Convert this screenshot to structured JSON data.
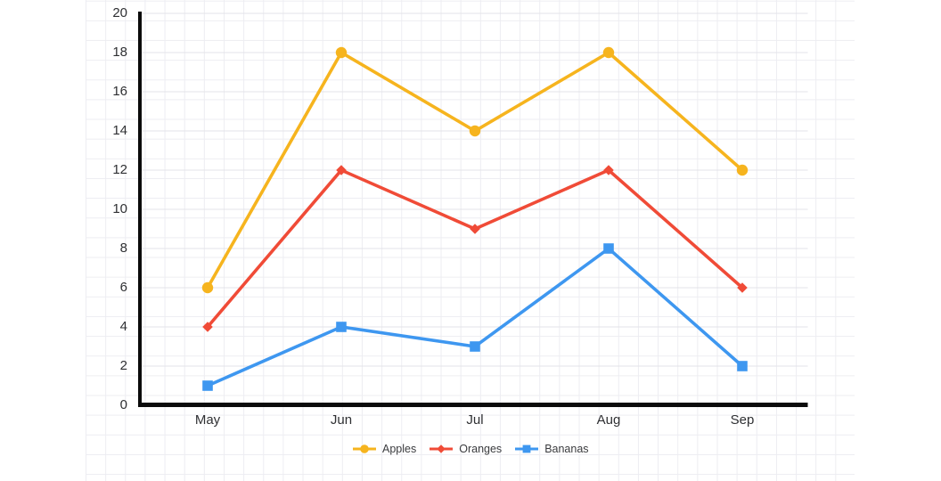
{
  "chart_data": {
    "type": "line",
    "categories": [
      "May",
      "Jun",
      "Jul",
      "Aug",
      "Sep"
    ],
    "series": [
      {
        "name": "Apples",
        "color": "#F6B41E",
        "marker": "circle",
        "values": [
          6,
          18,
          14,
          18,
          12
        ]
      },
      {
        "name": "Oranges",
        "color": "#F04B37",
        "marker": "diamond",
        "values": [
          4,
          12,
          9,
          12,
          6
        ]
      },
      {
        "name": "Bananas",
        "color": "#3E97F0",
        "marker": "square",
        "values": [
          1,
          4,
          3,
          8,
          2
        ]
      }
    ],
    "yticks": [
      0,
      2,
      4,
      6,
      8,
      10,
      12,
      14,
      16,
      18,
      20
    ],
    "ylim": [
      0,
      20
    ],
    "xlabel": "",
    "ylabel": "",
    "grid": "on",
    "legend_position": "bottom",
    "axis_color": "#0b0b0b",
    "tick_gridline_color": "#e3e3e8",
    "paper_grid_color": "#ededf2",
    "background_color": "#ffffff"
  }
}
